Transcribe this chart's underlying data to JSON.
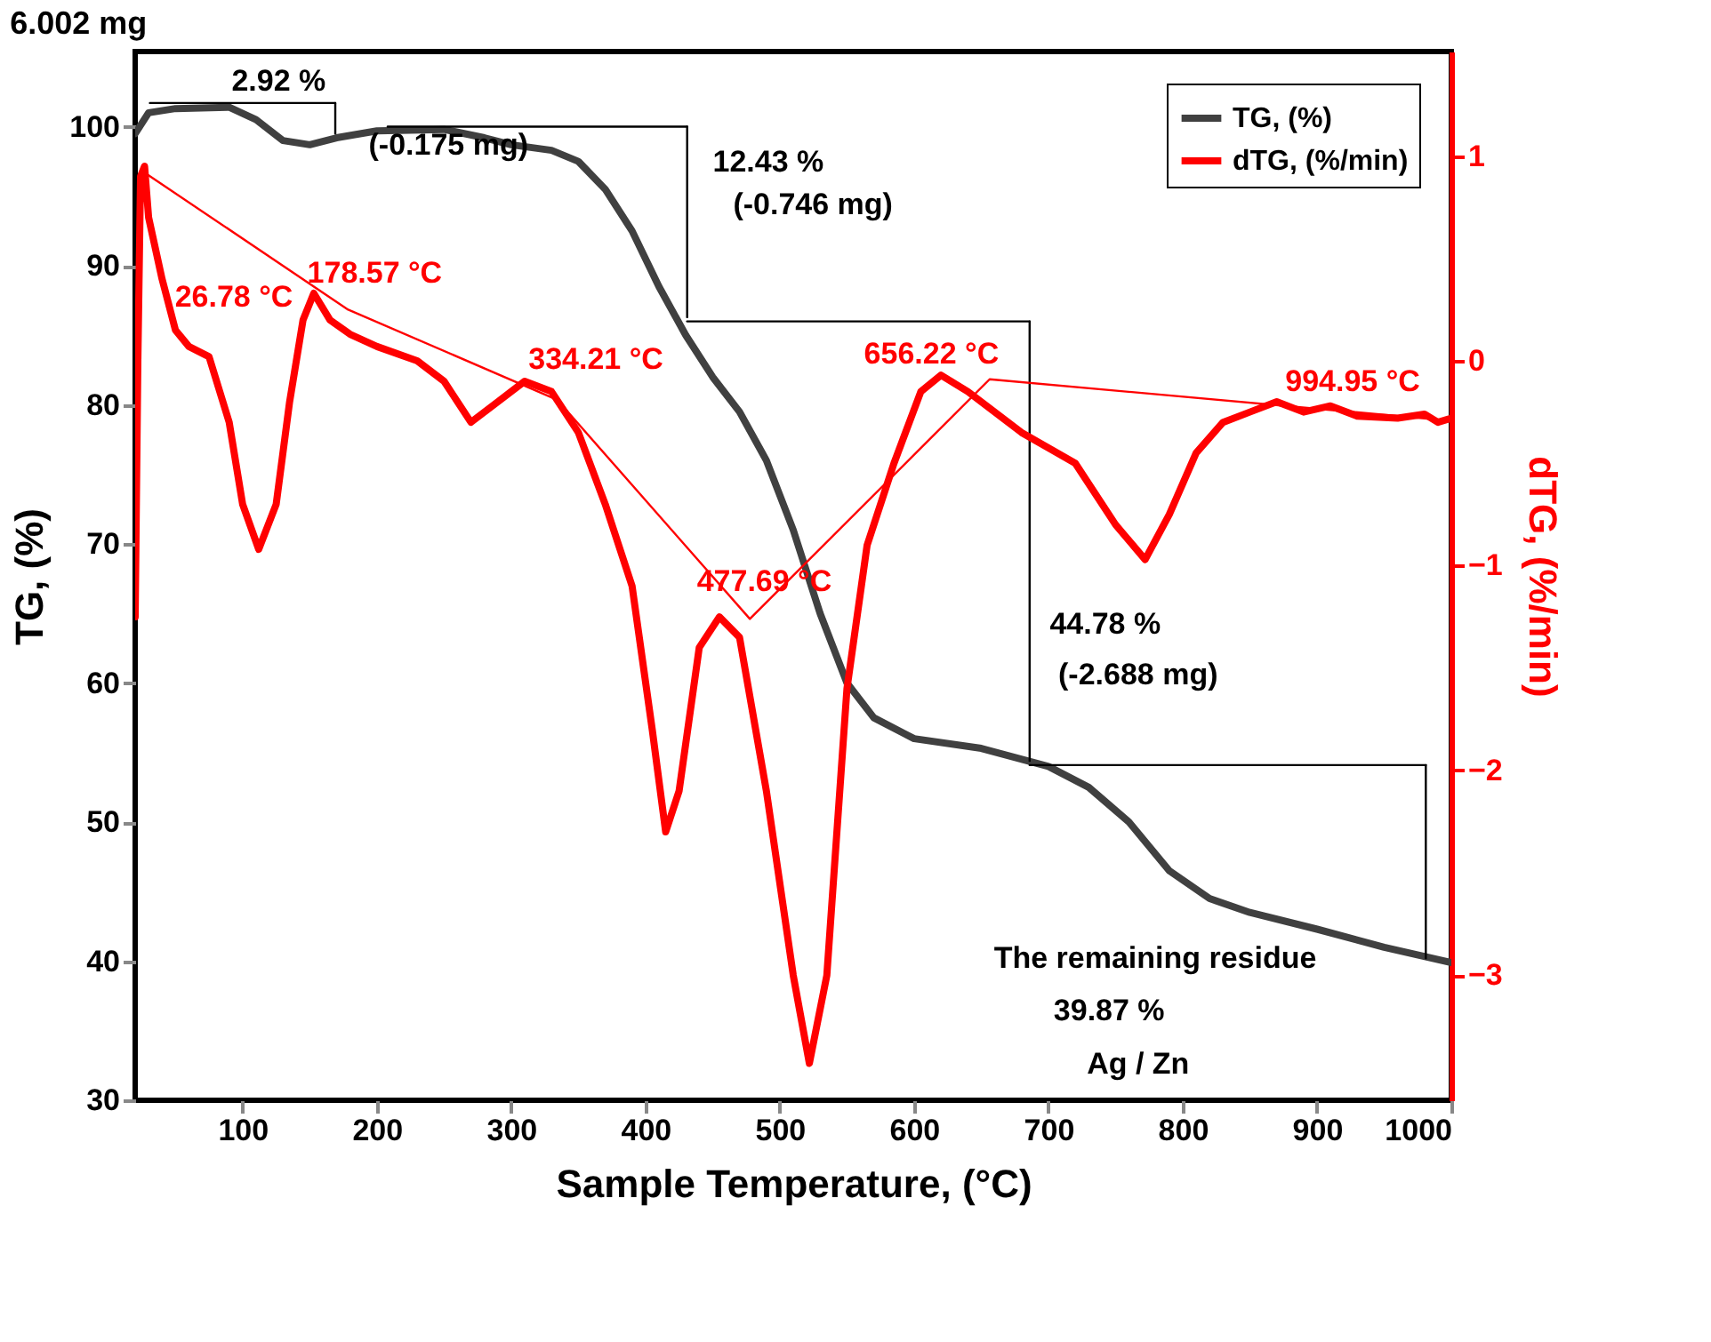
{
  "chart_data": {
    "type": "line",
    "title": "6.002 mg",
    "xlabel": "Sample Temperature, (°C)",
    "ylabel": "TG, (%)",
    "y2label": "dTG, (%/min)",
    "xlim": [
      20,
      1000
    ],
    "xticks": [
      100,
      200,
      300,
      400,
      500,
      600,
      700,
      800,
      900,
      1000
    ],
    "ylim": [
      30,
      105.4
    ],
    "yticks": [
      30,
      40,
      50,
      60,
      70,
      80,
      90,
      100
    ],
    "y2lim": [
      -3.61,
      1.51
    ],
    "y2ticks": [
      -3,
      -2,
      -1,
      0,
      1
    ],
    "grid": false,
    "legend": "top right",
    "line_style": "solid",
    "series": [
      {
        "name": "TG, (%)",
        "color": "#404040",
        "x": [
          20,
          30,
          50,
          90,
          110,
          130,
          150,
          170,
          200,
          250,
          280,
          300,
          330,
          350,
          370,
          390,
          410,
          430,
          450,
          470,
          490,
          510,
          530,
          550,
          570,
          600,
          650,
          700,
          730,
          760,
          790,
          820,
          850,
          900,
          950,
          1000
        ],
        "values": [
          99.5,
          101,
          101.3,
          101.4,
          100.5,
          99,
          98.7,
          99.2,
          99.7,
          99.8,
          99.2,
          98.7,
          98.3,
          97.5,
          95.5,
          92.5,
          88.5,
          85,
          82,
          79.5,
          76,
          71,
          65,
          60,
          57.5,
          56,
          55.3,
          54,
          52.5,
          50,
          46.5,
          44.5,
          43.5,
          42.3,
          41,
          39.9
        ]
      },
      {
        "name": "dTG, (%/min)",
        "color": "#ff0000",
        "axis": "y2",
        "x": [
          20,
          22,
          24,
          27,
          30,
          40,
          50,
          60,
          75,
          90,
          100,
          112,
          125,
          135,
          145,
          153,
          165,
          180,
          200,
          230,
          250,
          270,
          290,
          310,
          330,
          350,
          370,
          390,
          405,
          415,
          425,
          440,
          455,
          470,
          490,
          510,
          522,
          535,
          550,
          565,
          585,
          605,
          620,
          640,
          680,
          720,
          750,
          772,
          790,
          810,
          830,
          850,
          870,
          890,
          910,
          930,
          960,
          980,
          990,
          1000
        ],
        "values": [
          -1.25,
          0.0,
          0.9,
          0.95,
          0.7,
          0.4,
          0.15,
          0.07,
          0.02,
          -0.3,
          -0.7,
          -0.92,
          -0.7,
          -0.2,
          0.2,
          0.33,
          0.2,
          0.13,
          0.07,
          0.0,
          -0.1,
          -0.3,
          -0.2,
          -0.1,
          -0.15,
          -0.35,
          -0.7,
          -1.1,
          -1.8,
          -2.3,
          -2.1,
          -1.4,
          -1.25,
          -1.35,
          -2.1,
          -3.0,
          -3.43,
          -3.0,
          -1.6,
          -0.9,
          -0.5,
          -0.15,
          -0.07,
          -0.15,
          -0.35,
          -0.5,
          -0.8,
          -0.97,
          -0.75,
          -0.45,
          -0.3,
          -0.25,
          -0.2,
          -0.25,
          -0.22,
          -0.27,
          -0.28,
          -0.26,
          -0.3,
          -0.28
        ]
      },
      {
        "color": "#ff0000",
        "axis": "y2",
        "x": [
          26.78,
          178.57,
          334.21,
          477.69,
          656.22,
          994.95
        ],
        "values": [
          0.92,
          0.25,
          -0.19,
          -1.26,
          -0.09,
          -0.29
        ]
      },
      {
        "color": "#000000",
        "x": [
          31,
          169
        ],
        "values": [
          101.7,
          101.7
        ]
      },
      {
        "color": "#000000",
        "x": [
          169,
          169
        ],
        "values": [
          99.5,
          101.7
        ]
      },
      {
        "color": "#000000",
        "x": [
          208,
          431
        ],
        "values": [
          100,
          100
        ]
      },
      {
        "color": "#000000",
        "x": [
          431,
          431
        ],
        "values": [
          86.3,
          100
        ]
      },
      {
        "color": "#000000",
        "x": [
          431,
          686
        ],
        "values": [
          86,
          86
        ]
      },
      {
        "color": "#000000",
        "x": [
          686,
          686
        ],
        "values": [
          54.4,
          86
        ]
      },
      {
        "color": "#000000",
        "x": [
          686,
          981
        ],
        "values": [
          54.1,
          54.1
        ]
      },
      {
        "color": "#000000",
        "x": [
          981,
          981
        ],
        "values": [
          40.2,
          54.1
        ]
      }
    ],
    "annotations": [
      "2.92 %",
      "(-0.175 mg)",
      "12.43 %",
      "(-0.746 mg)",
      "44.78 %",
      "(-2.688 mg)",
      "The remaining residue",
      "39.87 %",
      "Ag / Zn",
      "26.78 °C",
      "178.57 °C",
      "334.21 °C",
      "477.69 °C",
      "656.22 °C",
      "994.95 °C"
    ]
  }
}
